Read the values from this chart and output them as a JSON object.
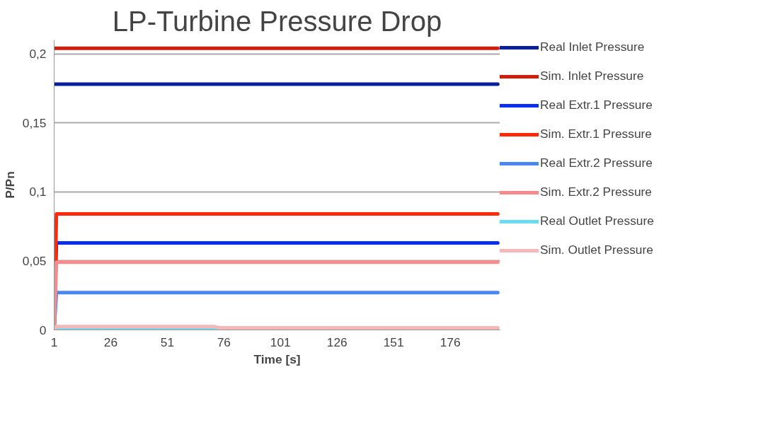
{
  "chart_data": {
    "type": "line",
    "title": "LP-Turbine Pressure Drop",
    "xlabel": "Time [s]",
    "ylabel": "P/Pn",
    "xlim": [
      1,
      198
    ],
    "xticks": [
      1,
      26,
      51,
      76,
      101,
      126,
      151,
      176
    ],
    "ylim": [
      0,
      0.21
    ],
    "yticks": [
      0,
      {
        "value": 0.05,
        "label": "0,05"
      },
      {
        "value": 0.1,
        "label": "0,1"
      },
      {
        "value": 0.15,
        "label": "0,15"
      },
      {
        "value": 0.2,
        "label": "0,2"
      }
    ],
    "grid": "y",
    "legend": "right",
    "marker": "none",
    "line_style": "solid",
    "series": [
      {
        "name": "Real Inlet Pressure",
        "color": "#0a1f9c",
        "x": [
          1,
          197
        ],
        "values": [
          0.178,
          0.178
        ]
      },
      {
        "name": "Sim. Inlet Pressure",
        "color": "#d01c0a",
        "x": [
          1,
          197
        ],
        "values": [
          0.204,
          0.204
        ]
      },
      {
        "name": "Real Extr.1 Pressure",
        "color": "#0a2ef0",
        "x": [
          1,
          2,
          197
        ],
        "values": [
          0,
          0.063,
          0.063
        ]
      },
      {
        "name": "Sim. Extr.1 Pressure",
        "color": "#ff2a0a",
        "x": [
          1,
          2,
          197
        ],
        "values": [
          0,
          0.084,
          0.084
        ]
      },
      {
        "name": "Real Extr.2 Pressure",
        "color": "#4a86f2",
        "x": [
          1,
          2,
          197
        ],
        "values": [
          0,
          0.027,
          0.027
        ]
      },
      {
        "name": "Sim. Extr.2 Pressure",
        "color": "#f78b8b",
        "x": [
          1,
          2,
          197
        ],
        "values": [
          0,
          0.049,
          0.049
        ]
      },
      {
        "name": "Real Outlet Pressure",
        "color": "#6adcf2",
        "x": [
          1,
          197
        ],
        "values": [
          0,
          0
        ]
      },
      {
        "name": "Sim. Outlet Pressure",
        "color": "#f5b8b8",
        "x": [
          1,
          2,
          72,
          74,
          197
        ],
        "values": [
          0,
          0.0024,
          0.0024,
          0.0015,
          0.0015
        ]
      }
    ]
  }
}
